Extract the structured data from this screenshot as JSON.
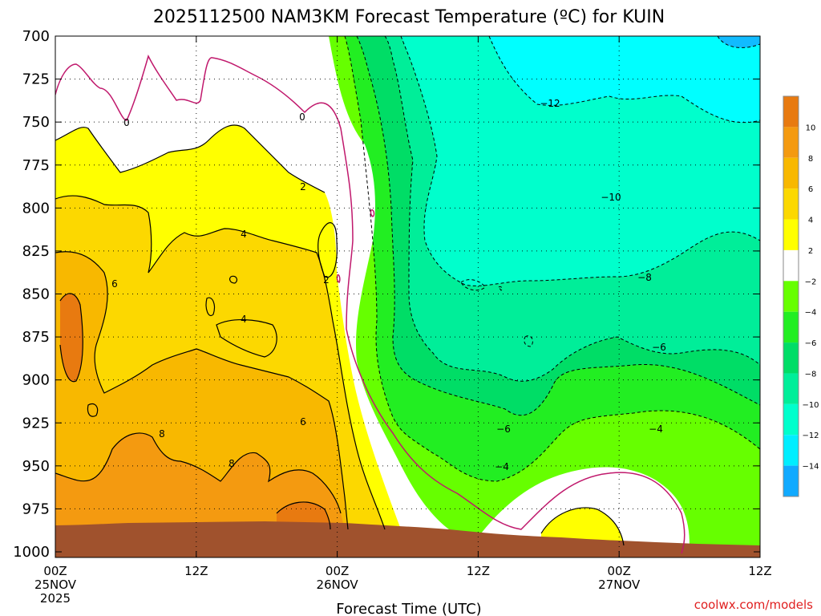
{
  "title": "2025112500 NAM3KM Forecast Temperature (ºC) for KUIN",
  "credit": "coolwx.com/models",
  "chart_data": {
    "type": "heatmap",
    "title": "2025112500 NAM3KM Forecast Temperature (ºC) for KUIN",
    "xlabel": "Forecast Time (UTC)",
    "ylabel": "",
    "y_ticks": [
      "700",
      "725",
      "750",
      "775",
      "800",
      "825",
      "850",
      "875",
      "900",
      "925",
      "950",
      "975",
      "1000"
    ],
    "x_ticks": [
      {
        "lines": [
          "00Z",
          "25NOV",
          "2025"
        ]
      },
      {
        "lines": [
          "12Z"
        ]
      },
      {
        "lines": [
          "00Z",
          "26NOV"
        ]
      },
      {
        "lines": [
          "12Z"
        ]
      },
      {
        "lines": [
          "00Z",
          "27NOV"
        ]
      },
      {
        "lines": [
          "12Z"
        ]
      }
    ],
    "grid": true,
    "colorbar_labels": [
      "10",
      "8",
      "6",
      "4",
      "2",
      "-2",
      "-4",
      "-6",
      "-8",
      "-10",
      "-12",
      "-14"
    ],
    "colorbar_colors": [
      "#e87a10",
      "#f49a10",
      "#f8b800",
      "#fcd800",
      "#ffff00",
      "#ffffff",
      "#66ff00",
      "#22ee22",
      "#00dd66",
      "#00ee99",
      "#00ffcc",
      "#00eeff",
      "#11aaff"
    ],
    "contour_labels": [
      "0",
      "0",
      "2",
      "2",
      "4",
      "4",
      "6",
      "6",
      "8",
      "8",
      "-12",
      "-10",
      "-8",
      "-6",
      "-6",
      "-4",
      "-4"
    ]
  }
}
